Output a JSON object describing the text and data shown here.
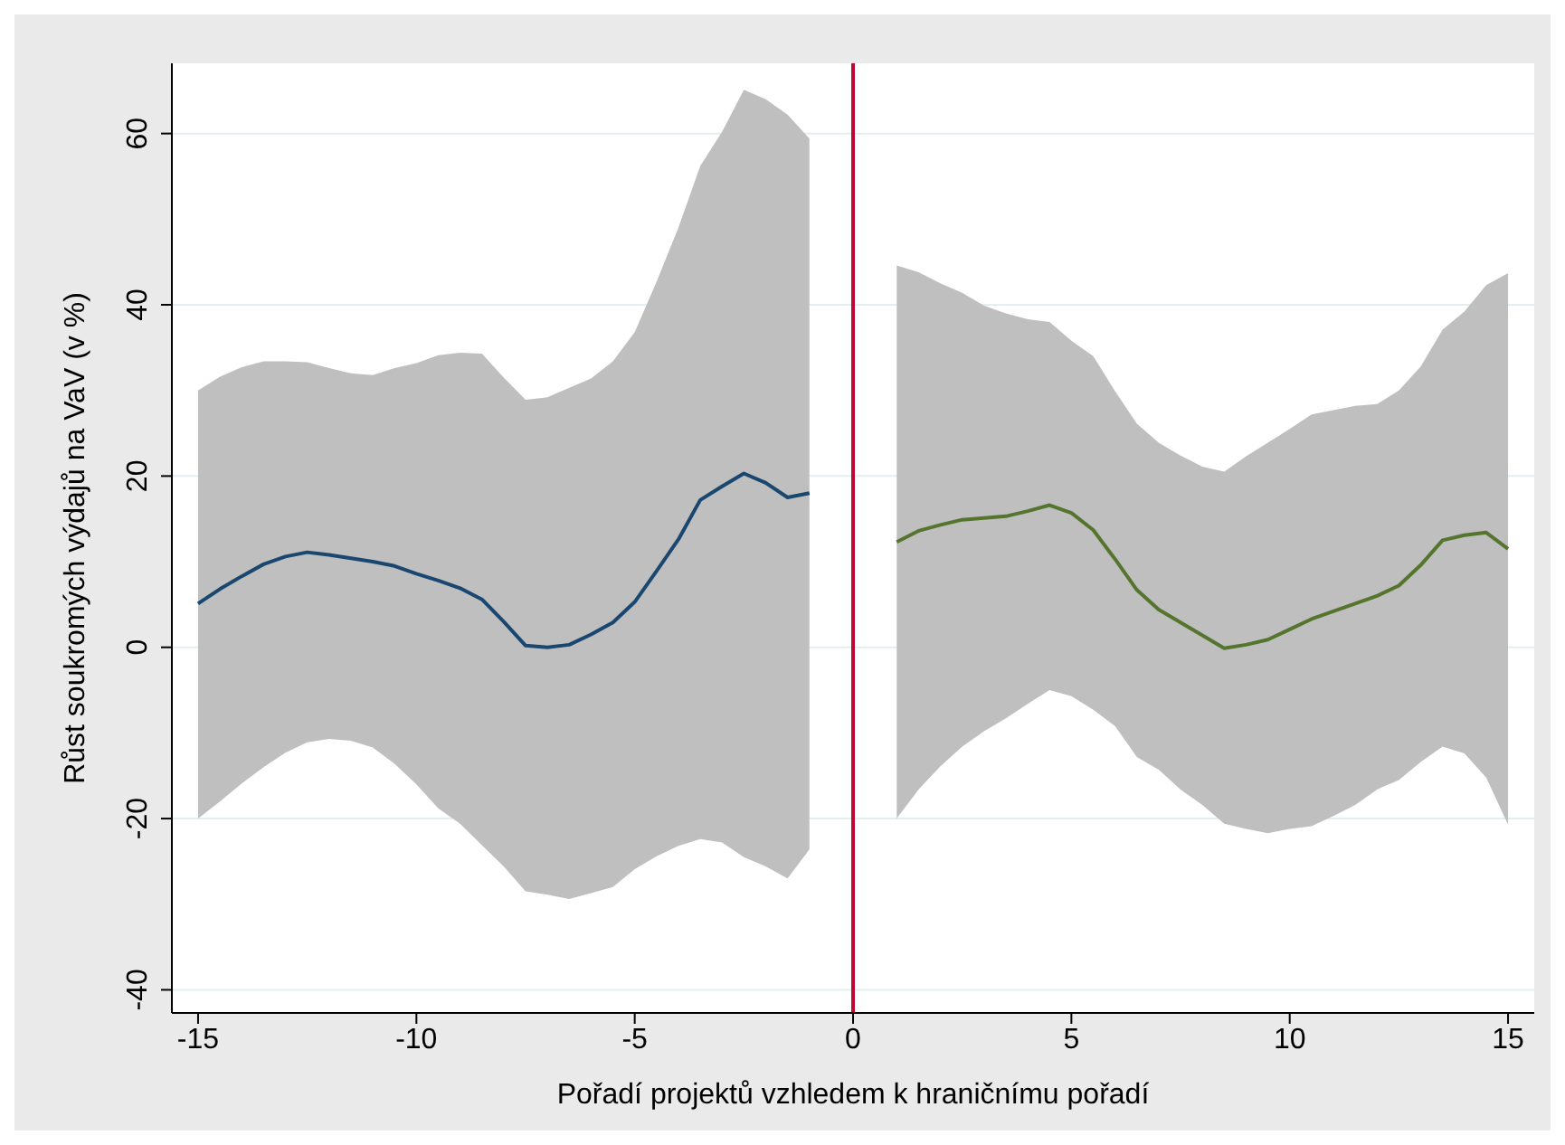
{
  "chart_data": {
    "type": "line",
    "xlabel": "Pořadí projektů vzhledem k hraničnímu pořadí",
    "ylabel": "Růst soukromých výdajů na VaV (v %)",
    "xlim": [
      -15.6,
      15.6
    ],
    "ylim": [
      -42.7,
      68.2
    ],
    "xticks": [
      -15,
      -10,
      -5,
      0,
      5,
      10,
      15
    ],
    "yticks": [
      -40,
      -20,
      0,
      20,
      40,
      60
    ],
    "grid": "y",
    "marker": "none",
    "line_style": "solid",
    "ref_lines": [
      {
        "axis": "x",
        "value": 0,
        "color": "#c10534"
      }
    ],
    "series": [
      {
        "color": "#1a476f",
        "x": [
          -15,
          -14.5,
          -14,
          -13.5,
          -13,
          -12.5,
          -12,
          -11.5,
          -11,
          -10.5,
          -10,
          -9.5,
          -9,
          -8.5,
          -8,
          -7.5,
          -7,
          -6.5,
          -6,
          -5.5,
          -5,
          -4.5,
          -4,
          -3.5,
          -3,
          -2.5,
          -2,
          -1.5,
          -1
        ],
        "values": [
          5.1,
          6.8,
          8.3,
          9.7,
          10.6,
          11.1,
          10.8,
          10.4,
          10.0,
          9.5,
          8.6,
          7.8,
          6.9,
          5.6,
          3.0,
          0.2,
          0.0,
          0.3,
          1.5,
          2.9,
          5.3,
          8.9,
          12.6,
          17.2,
          18.8,
          20.3,
          19.2,
          17.5,
          18.0
        ],
        "upper": [
          30.0,
          31.6,
          32.7,
          33.4,
          33.4,
          33.3,
          32.6,
          32.0,
          31.8,
          32.6,
          33.2,
          34.1,
          34.4,
          34.3,
          31.5,
          28.9,
          29.2,
          30.3,
          31.4,
          33.4,
          36.8,
          42.7,
          49.0,
          56.2,
          60.2,
          65.1,
          64.0,
          62.2,
          59.4
        ],
        "lower": [
          -20.0,
          -18.0,
          -15.9,
          -14.0,
          -12.3,
          -11.1,
          -10.7,
          -10.9,
          -11.7,
          -13.6,
          -16.0,
          -18.8,
          -20.6,
          -23.1,
          -25.6,
          -28.5,
          -28.9,
          -29.4,
          -28.7,
          -28.0,
          -25.9,
          -24.4,
          -23.2,
          -22.4,
          -22.8,
          -24.5,
          -25.6,
          -27.0,
          -23.6
        ]
      },
      {
        "color": "#55752f",
        "x": [
          1,
          1.5,
          2,
          2.5,
          3,
          3.5,
          4,
          4.5,
          5,
          5.5,
          6,
          6.5,
          7,
          7.5,
          8,
          8.5,
          9,
          9.5,
          10,
          10.5,
          11,
          11.5,
          12,
          12.5,
          13,
          13.5,
          14,
          14.5,
          15
        ],
        "values": [
          12.3,
          13.6,
          14.3,
          14.9,
          15.1,
          15.3,
          15.9,
          16.6,
          15.7,
          13.7,
          10.3,
          6.7,
          4.4,
          2.9,
          1.4,
          -0.1,
          0.3,
          0.9,
          2.1,
          3.3,
          4.2,
          5.1,
          6.0,
          7.2,
          9.6,
          12.5,
          13.1,
          13.4,
          11.5
        ],
        "upper": [
          44.6,
          43.8,
          42.5,
          41.4,
          39.9,
          39.0,
          38.3,
          38.0,
          35.8,
          34.0,
          29.9,
          26.1,
          23.9,
          22.4,
          21.1,
          20.5,
          22.3,
          23.9,
          25.5,
          27.2,
          27.7,
          28.2,
          28.4,
          30.0,
          32.8,
          37.1,
          39.2,
          42.3,
          43.7
        ],
        "lower": [
          -20.0,
          -16.6,
          -13.9,
          -11.6,
          -9.8,
          -8.3,
          -6.6,
          -5.0,
          -5.7,
          -7.3,
          -9.2,
          -12.8,
          -14.3,
          -16.6,
          -18.4,
          -20.6,
          -21.2,
          -21.7,
          -21.2,
          -20.9,
          -19.7,
          -18.4,
          -16.6,
          -15.5,
          -13.4,
          -11.6,
          -12.4,
          -15.2,
          -20.7
        ]
      }
    ]
  }
}
